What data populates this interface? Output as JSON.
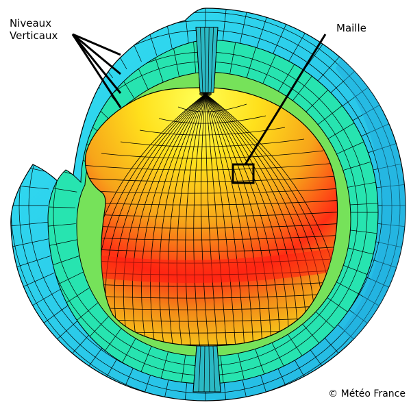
{
  "labels": {
    "vertical_levels_line1": "Niveaux",
    "vertical_levels_line2": "Verticaux",
    "cell": "Maille",
    "copyright": "© Météo France"
  },
  "colors": {
    "outer_shell": "#2fd8f0",
    "outer_shell_dark": "#24b4e0",
    "middle_shell": "#26e6b4",
    "inner_shell": "#7de45a",
    "core_top": "#ffff33",
    "core_mid": "#f5a519",
    "core_equator": "#ff2b14",
    "grid_line": "#000000"
  }
}
